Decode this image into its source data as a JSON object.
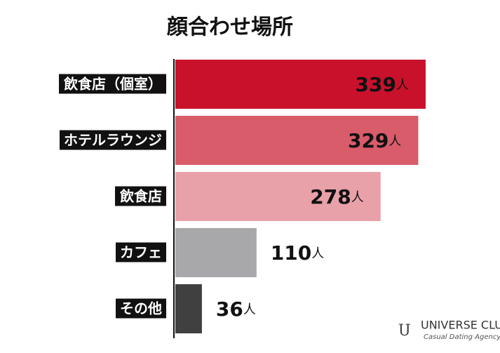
{
  "chart_data": {
    "type": "bar",
    "orientation": "horizontal",
    "title": "顔合わせ場所",
    "categories": [
      "飲食店（個室）",
      "ホテルラウンジ",
      "飲食店",
      "カフェ",
      "その他"
    ],
    "values": [
      339,
      329,
      278,
      110,
      36
    ],
    "value_labels": [
      "339人",
      "329人",
      "278人",
      "110人",
      "36人"
    ],
    "colors": [
      "#c9112c",
      "#d95c6b",
      "#e8a0a9",
      "#a8a8aa",
      "#404040"
    ],
    "xlim": [
      0,
      400
    ]
  },
  "logo": {
    "name": "UNIVERSE CLUB",
    "tagline": "Casual Dating Agency"
  }
}
